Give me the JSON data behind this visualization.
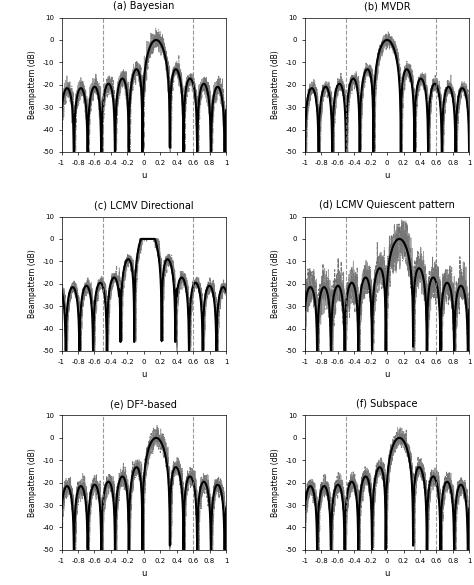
{
  "titles": [
    "(a) Bayesian",
    "(b) MVDR",
    "(c) LCMV Directional",
    "(d) LCMV Quiescent pattern",
    "(e) DF²-based",
    "(f) Subspace"
  ],
  "ylabel": "Beampattern (dB)",
  "xlabel": "u",
  "ylim": [
    -50,
    10
  ],
  "xlim": [
    -1,
    1
  ],
  "yticks": [
    -50,
    -40,
    -30,
    -20,
    -10,
    0,
    10
  ],
  "xticks": [
    -1,
    -0.8,
    -0.6,
    -0.4,
    -0.2,
    0,
    0.2,
    0.4,
    0.6,
    0.8,
    1
  ],
  "xtick_labels": [
    "-1",
    "-0.8",
    "-0.6",
    "-0.4",
    "-0.2",
    "0",
    "0.2",
    "0.4",
    "0.6",
    "0.8",
    "1"
  ],
  "vlines": [
    -0.5,
    0.6
  ],
  "figsize": [
    4.74,
    5.85
  ],
  "dpi": 100
}
